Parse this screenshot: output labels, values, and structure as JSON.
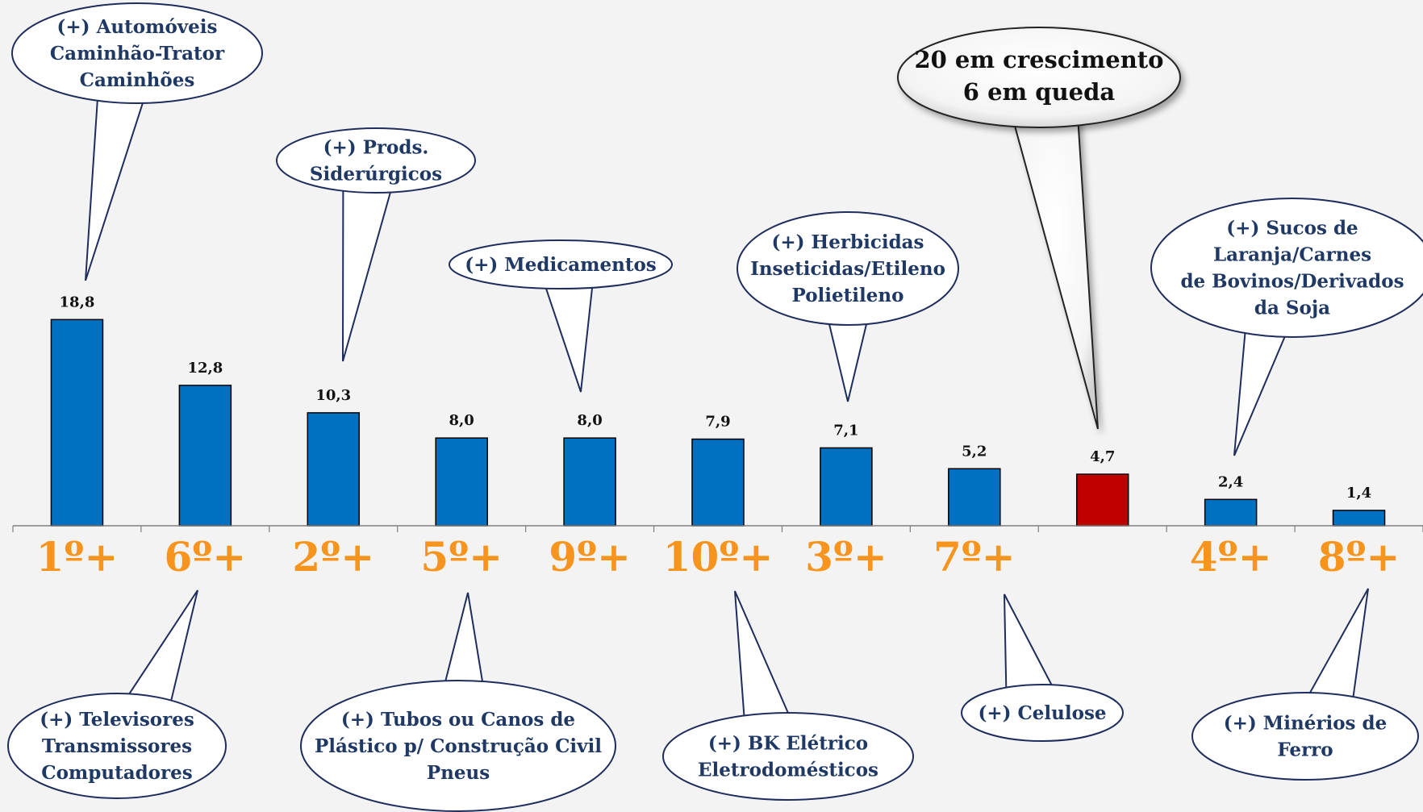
{
  "colors": {
    "bar_blue": "#0070c0",
    "bar_red": "#c00000",
    "rank_orange": "#f7941d",
    "annotation_text": "#1f3864",
    "background": "#f3f3f3"
  },
  "chart_data": {
    "type": "bar",
    "categories": [
      "1º+",
      "6º+",
      "2º+",
      "5º+",
      "9º+",
      "10º+",
      "3º+",
      "7º+",
      "",
      "4º+",
      "8º+"
    ],
    "values": [
      18.8,
      12.8,
      10.3,
      8.0,
      8.0,
      7.9,
      7.1,
      5.2,
      4.7,
      2.4,
      1.4
    ],
    "value_labels": [
      "18,8",
      "12,8",
      "10,3",
      "8,0",
      "8,0",
      "7,9",
      "7,1",
      "5,2",
      "4,7",
      "2,4",
      "1,4"
    ],
    "bar_colors": [
      "#0070c0",
      "#0070c0",
      "#0070c0",
      "#0070c0",
      "#0070c0",
      "#0070c0",
      "#0070c0",
      "#0070c0",
      "#c00000",
      "#0070c0",
      "#0070c0"
    ],
    "ylim": [
      0,
      25
    ],
    "grid": false,
    "annotations": [
      {
        "bar": 0,
        "side": "top",
        "lines": [
          "(+) Automóveis",
          "Caminhão-Trator",
          "Caminhões"
        ]
      },
      {
        "bar": 2,
        "side": "top",
        "lines": [
          "(+) Prods.",
          "Siderúrgicos"
        ]
      },
      {
        "bar": 4,
        "side": "top",
        "lines": [
          "(+) Medicamentos"
        ]
      },
      {
        "bar": 6,
        "side": "top",
        "lines": [
          "(+) Herbicidas",
          "Inseticidas/Etileno",
          "Polietileno"
        ]
      },
      {
        "bar": 9,
        "side": "top",
        "lines": [
          "(+) Sucos de",
          "Laranja/Carnes",
          "de Bovinos/Derivados",
          "da Soja"
        ]
      },
      {
        "bar": 1,
        "side": "bottom",
        "lines": [
          "(+) Televisores",
          "Transmissores",
          "Computadores"
        ]
      },
      {
        "bar": 3,
        "side": "bottom",
        "lines": [
          "(+) Tubos ou Canos de",
          "Plástico p/ Construção Civil",
          "Pneus"
        ]
      },
      {
        "bar": 5,
        "side": "bottom",
        "lines": [
          "(+) BK Elétrico",
          "Eletrodomésticos"
        ]
      },
      {
        "bar": 7,
        "side": "bottom",
        "lines": [
          "(+) Celulose"
        ]
      },
      {
        "bar": 10,
        "side": "bottom",
        "lines": [
          "(+) Minérios de",
          "Ferro"
        ]
      }
    ],
    "summary": {
      "bar": 8,
      "lines": [
        "20 em crescimento",
        "6 em queda"
      ]
    }
  }
}
